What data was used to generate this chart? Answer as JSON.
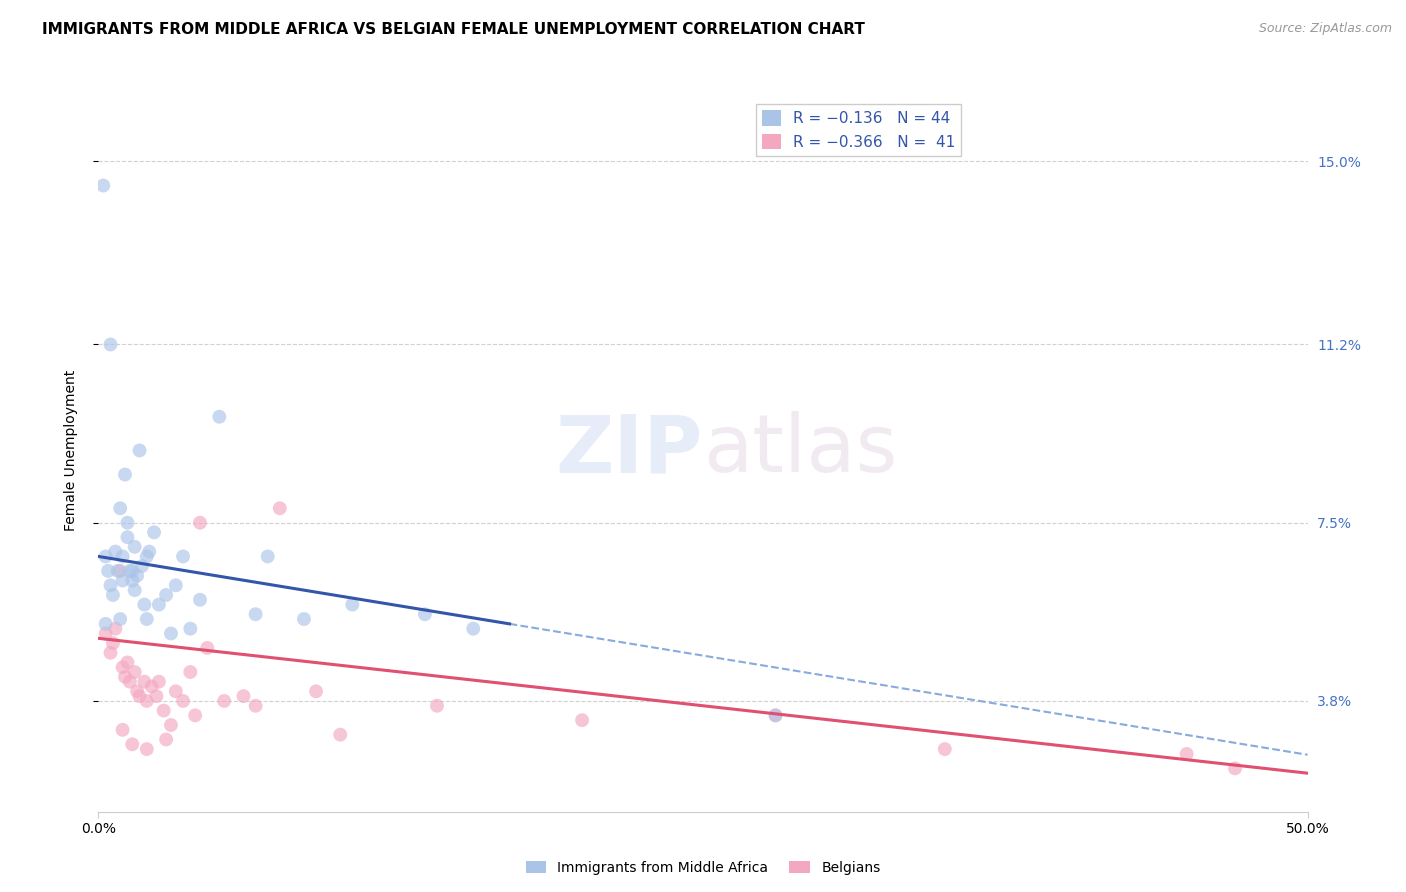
{
  "title": "IMMIGRANTS FROM MIDDLE AFRICA VS BELGIAN FEMALE UNEMPLOYMENT CORRELATION CHART",
  "source": "Source: ZipAtlas.com",
  "ylabel": "Female Unemployment",
  "ytick_values": [
    3.8,
    7.5,
    11.2,
    15.0
  ],
  "xmin": 0.0,
  "xmax": 50.0,
  "ymin": 1.5,
  "ymax": 16.5,
  "blue_scatter_x": [
    0.2,
    0.3,
    0.4,
    0.5,
    0.6,
    0.7,
    0.8,
    0.9,
    1.0,
    1.0,
    1.1,
    1.2,
    1.3,
    1.4,
    1.5,
    1.5,
    1.6,
    1.7,
    1.8,
    1.9,
    2.0,
    2.1,
    2.3,
    2.5,
    2.8,
    3.0,
    3.2,
    3.5,
    4.2,
    5.0,
    6.5,
    7.0,
    8.5,
    10.5,
    13.5,
    15.5,
    0.5,
    0.9,
    1.2,
    1.4,
    2.0,
    3.8,
    0.3,
    28.0
  ],
  "blue_scatter_y": [
    14.5,
    6.8,
    6.5,
    6.2,
    6.0,
    6.9,
    6.5,
    7.8,
    6.3,
    6.8,
    8.5,
    7.2,
    6.5,
    6.3,
    6.1,
    7.0,
    6.4,
    9.0,
    6.6,
    5.8,
    6.8,
    6.9,
    7.3,
    5.8,
    6.0,
    5.2,
    6.2,
    6.8,
    5.9,
    9.7,
    5.6,
    6.8,
    5.5,
    5.8,
    5.6,
    5.3,
    11.2,
    5.5,
    7.5,
    6.5,
    5.5,
    5.3,
    5.4,
    3.5
  ],
  "pink_scatter_x": [
    0.3,
    0.5,
    0.6,
    0.7,
    0.9,
    1.0,
    1.1,
    1.2,
    1.3,
    1.5,
    1.6,
    1.7,
    1.9,
    2.0,
    2.2,
    2.4,
    2.5,
    2.7,
    3.0,
    3.2,
    3.5,
    3.8,
    4.0,
    4.5,
    5.2,
    6.0,
    7.5,
    10.0,
    14.0,
    20.0,
    28.0,
    35.0,
    45.0,
    1.0,
    1.4,
    2.0,
    2.8,
    4.2,
    6.5,
    9.0,
    47.0
  ],
  "pink_scatter_y": [
    5.2,
    4.8,
    5.0,
    5.3,
    6.5,
    4.5,
    4.3,
    4.6,
    4.2,
    4.4,
    4.0,
    3.9,
    4.2,
    3.8,
    4.1,
    3.9,
    4.2,
    3.6,
    3.3,
    4.0,
    3.8,
    4.4,
    3.5,
    4.9,
    3.8,
    3.9,
    7.8,
    3.1,
    3.7,
    3.4,
    3.5,
    2.8,
    2.7,
    3.2,
    2.9,
    2.8,
    3.0,
    7.5,
    3.7,
    4.0,
    2.4
  ],
  "blue_line_x_start": 0.0,
  "blue_line_x_end": 17.0,
  "blue_dash_x_start": 17.0,
  "blue_dash_x_end": 50.0,
  "blue_line_start_y": 6.8,
  "blue_line_end_y": 5.4,
  "pink_line_x_start": 0.0,
  "pink_line_x_end": 50.0,
  "pink_line_start_y": 5.1,
  "pink_line_end_y": 2.3,
  "blue_line_color": "#3355aa",
  "pink_line_color": "#e05070",
  "blue_dash_color": "#88aadd",
  "scatter_blue_color": "#aac4e8",
  "scatter_pink_color": "#f4a8c0",
  "scatter_size": 100,
  "scatter_alpha": 0.65,
  "grid_color": "#cccccc",
  "background_color": "#ffffff",
  "title_fontsize": 11,
  "axis_label_fontsize": 10,
  "tick_fontsize": 10,
  "right_tick_color": "#4472c4"
}
